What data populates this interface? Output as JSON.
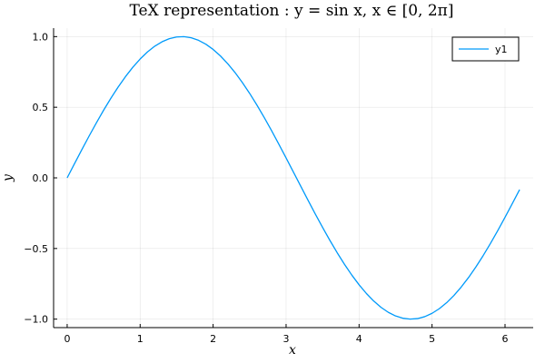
{
  "chart_data": {
    "type": "line",
    "title": "TeX representation :  y = sin x, x ∈ [0, 2π]",
    "xlabel": "x",
    "ylabel": "y",
    "xlim": [
      -0.186,
      6.386
    ],
    "ylim": [
      -1.06,
      1.06
    ],
    "xticks": [
      0,
      1,
      2,
      3,
      4,
      5,
      6
    ],
    "xtick_labels": [
      "0",
      "1",
      "2",
      "3",
      "4",
      "5",
      "6"
    ],
    "yticks": [
      -1.0,
      -0.5,
      0.0,
      0.5,
      1.0
    ],
    "ytick_labels": [
      "−1.0",
      "−0.5",
      "0.0",
      "0.5",
      "1.0"
    ],
    "grid": true,
    "legend_position": "top-right",
    "series": [
      {
        "name": "y1",
        "color": "#009AFA",
        "x": [
          0.0,
          0.1,
          0.2,
          0.3,
          0.4,
          0.5,
          0.6,
          0.7,
          0.8,
          0.9,
          1.0,
          1.1,
          1.2,
          1.3,
          1.4,
          1.5,
          1.6,
          1.7,
          1.8,
          1.9,
          2.0,
          2.1,
          2.2,
          2.3,
          2.4,
          2.5,
          2.6,
          2.7,
          2.8,
          2.9,
          3.0,
          3.1,
          3.2,
          3.3,
          3.4,
          3.5,
          3.6,
          3.7,
          3.8,
          3.9,
          4.0,
          4.1,
          4.2,
          4.3,
          4.4,
          4.5,
          4.6,
          4.7,
          4.8,
          4.9,
          5.0,
          5.1,
          5.2,
          5.3,
          5.4,
          5.5,
          5.6,
          5.7,
          5.8,
          5.9,
          6.0,
          6.1,
          6.2
        ],
        "y": [
          0.0,
          0.0998,
          0.1987,
          0.2955,
          0.3894,
          0.4794,
          0.5646,
          0.6442,
          0.7174,
          0.7833,
          0.8415,
          0.8912,
          0.932,
          0.9636,
          0.9854,
          0.9975,
          0.9996,
          0.9917,
          0.9738,
          0.9463,
          0.9093,
          0.8632,
          0.8085,
          0.7457,
          0.6755,
          0.5985,
          0.5155,
          0.4274,
          0.335,
          0.2392,
          0.1411,
          0.0416,
          -0.0584,
          -0.1577,
          -0.2555,
          -0.3508,
          -0.4425,
          -0.5298,
          -0.6119,
          -0.6878,
          -0.7568,
          -0.8183,
          -0.8716,
          -0.9162,
          -0.9516,
          -0.9775,
          -0.9937,
          -0.9999,
          -0.9962,
          -0.9825,
          -0.9589,
          -0.9258,
          -0.8835,
          -0.8323,
          -0.7728,
          -0.7055,
          -0.6313,
          -0.5507,
          -0.4646,
          -0.3739,
          -0.2794,
          -0.1822,
          -0.0831
        ]
      }
    ]
  }
}
